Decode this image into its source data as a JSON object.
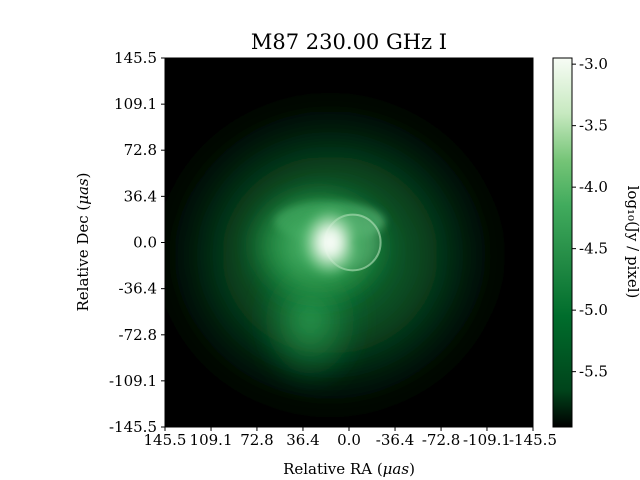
{
  "chart_data": {
    "type": "heatmap",
    "title": "M87 230.00 GHz I",
    "xlabel": "Relative RA (",
    "xlabel_unit": "μas",
    "ylabel": "Relative Dec (",
    "ylabel_unit": "μas",
    "label_close": ")",
    "x_ticks": [
      "145.5",
      "109.1",
      "72.8",
      "36.4",
      "0.0",
      "-36.4",
      "-72.8",
      "-109.1",
      "-145.5"
    ],
    "y_ticks": [
      "145.5",
      "109.1",
      "72.8",
      "36.4",
      "0.0",
      "-36.4",
      "-72.8",
      "-109.1",
      "-145.5"
    ],
    "xlim": [
      145.5,
      -145.5
    ],
    "ylim": [
      -145.5,
      145.5
    ],
    "colorbar": {
      "label": "log₁₀(Jy / pixel)",
      "ticks": [
        "-3.0",
        "-3.5",
        "-4.0",
        "-4.5",
        "-5.0",
        "-5.5"
      ],
      "tick_values": [
        -3.0,
        -3.5,
        -4.0,
        -4.5,
        -5.0,
        -5.5
      ],
      "range": [
        -5.95,
        -2.95
      ],
      "colormap": [
        "#00441b",
        "#006d2c",
        "#238b45",
        "#41ab5d",
        "#74c476",
        "#a1d99b",
        "#c7e9c0",
        "#e5f5e0",
        "#f7fcf5"
      ]
    },
    "features": {
      "peak_x": 15,
      "peak_y": 0,
      "ring_center_x": -3,
      "ring_center_y": 0,
      "ring_radius": 22
    }
  }
}
